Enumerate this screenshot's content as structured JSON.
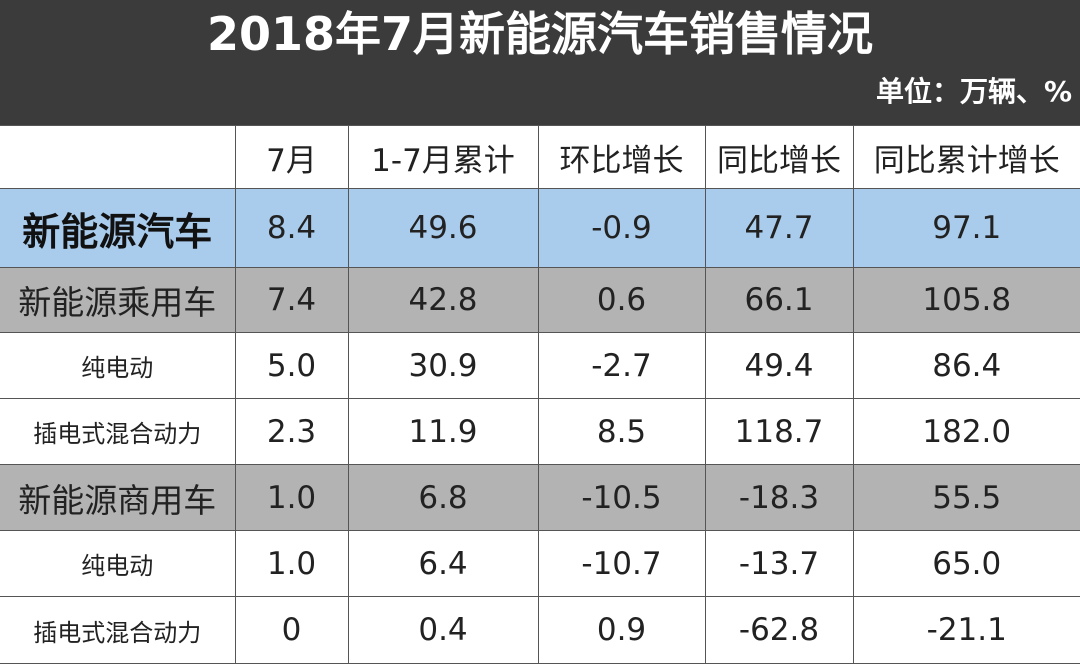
{
  "header": {
    "title": "2018年7月新能源汽车销售情况",
    "unit": "单位：万辆、%"
  },
  "table": {
    "columns": [
      "7月",
      "1-7月累计",
      "环比增长",
      "同比增长",
      "同比累计增长"
    ],
    "rows": [
      [
        "新能源汽车",
        "8.4",
        "49.6",
        "-0.9",
        "47.7",
        "97.1"
      ],
      [
        "新能源乘用车",
        "7.4",
        "42.8",
        "0.6",
        "66.1",
        "105.8"
      ],
      [
        "纯电动",
        "5.0",
        "30.9",
        "-2.7",
        "49.4",
        "86.4"
      ],
      [
        "插电式混合动力",
        "2.3",
        "11.9",
        "8.5",
        "118.7",
        "182.0"
      ],
      [
        "新能源商用车",
        "1.0",
        "6.8",
        "-10.5",
        "-18.3",
        "55.5"
      ],
      [
        "纯电动",
        "1.0",
        "6.4",
        "-10.7",
        "-13.7",
        "65.0"
      ],
      [
        "插电式混合动力",
        "0",
        "0.4",
        "0.9",
        "-62.8",
        "-21.1"
      ]
    ]
  }
}
